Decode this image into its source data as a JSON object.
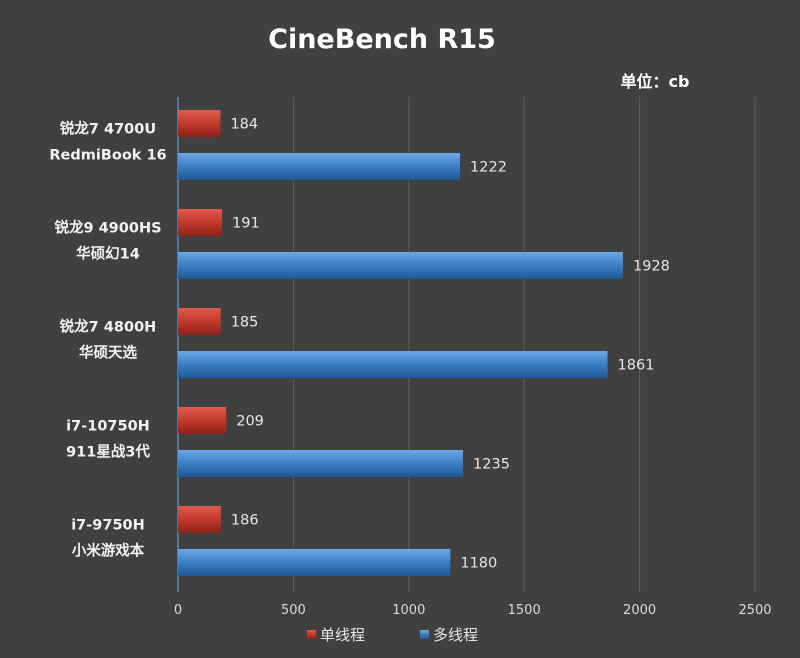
{
  "chart_data": {
    "type": "bar",
    "orientation": "horizontal",
    "title": "CineBench R15",
    "unit_label": "单位：cb",
    "categories": [
      [
        "锐龙7 4700U",
        "RedmiBook 16"
      ],
      [
        "锐龙9 4900HS",
        "华硕幻14"
      ],
      [
        "锐龙7 4800H",
        "华硕天选"
      ],
      [
        "i7-10750H",
        "911星战3代"
      ],
      [
        "i7-9750H",
        "小米游戏本"
      ]
    ],
    "series": [
      {
        "name": "单线程",
        "color": "#c0392b",
        "values": [
          184,
          191,
          185,
          209,
          186
        ]
      },
      {
        "name": "多线程",
        "color": "#3a7fc4",
        "values": [
          1222,
          1928,
          1861,
          1235,
          1180
        ]
      }
    ],
    "xlim": [
      0,
      2500
    ],
    "xticks": [
      0,
      500,
      1000,
      1500,
      2000,
      2500
    ],
    "grid": true,
    "legend_position": "bottom"
  }
}
